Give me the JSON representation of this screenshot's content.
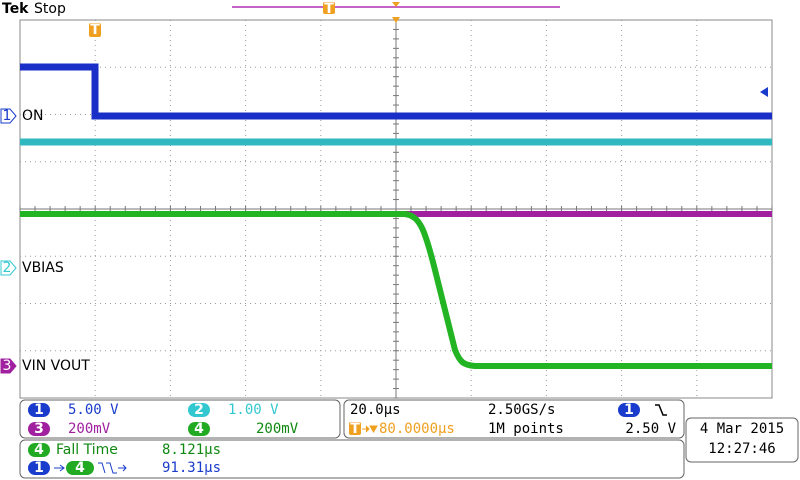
{
  "header": {
    "brand": "Tek",
    "status": "Stop"
  },
  "trigger_marker": "T",
  "channel_labels": [
    {
      "number": "1",
      "name": "ON"
    },
    {
      "number": "2",
      "name": "VBIAS"
    },
    {
      "number": "3",
      "name": "VIN VOUT"
    }
  ],
  "channels": [
    {
      "number": "1",
      "scale": "5.00 V"
    },
    {
      "number": "2",
      "scale": "1.00 V"
    },
    {
      "number": "3",
      "scale": "200mV"
    },
    {
      "number": "4",
      "scale": "200mV"
    }
  ],
  "timebase": {
    "time_per_div": "20.0µs",
    "sample_rate": "2.50GS/s",
    "trigger_position": "80.0000µs",
    "record_length": "1M points",
    "trigger_channel": "1",
    "trigger_level": "2.50 V"
  },
  "measurements": [
    {
      "source": "4",
      "label": "Fall Time",
      "value": "8.121µs"
    },
    {
      "source": "1",
      "target": "4",
      "value": "91.31µs"
    }
  ],
  "datetime": {
    "date": "4 Mar 2015",
    "time": "12:27:46"
  }
}
